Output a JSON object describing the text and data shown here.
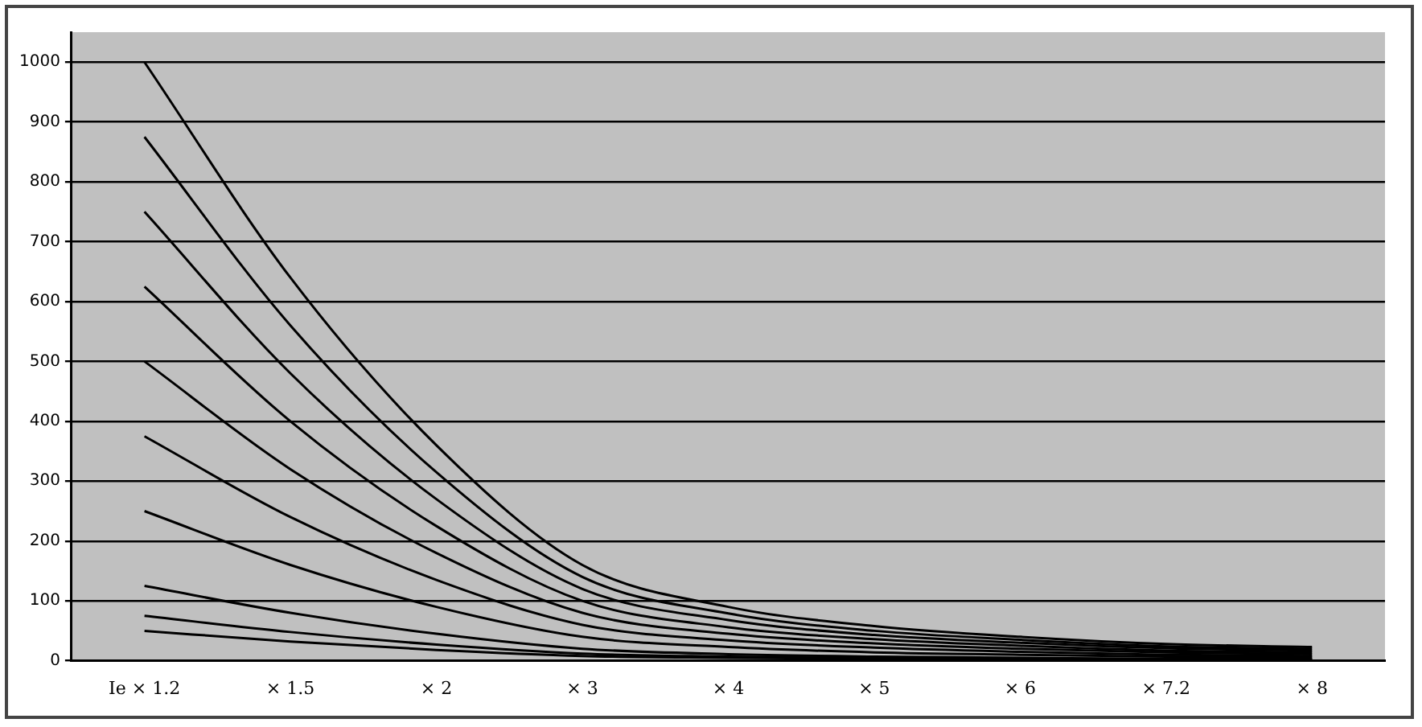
{
  "chart_data": {
    "type": "line",
    "categories": [
      "Ie × 1.2",
      "× 1.5",
      "× 2",
      "× 3",
      "× 4",
      "× 5",
      "× 6",
      "× 7.2",
      "× 8"
    ],
    "series": [
      {
        "color": "#000000",
        "values": [
          1000,
          640,
          360,
          160,
          90,
          58,
          40,
          28,
          23
        ]
      },
      {
        "color": "#000000",
        "values": [
          875,
          560,
          315,
          140,
          79,
          50,
          35,
          24,
          20
        ]
      },
      {
        "color": "#000000",
        "values": [
          750,
          480,
          270,
          120,
          68,
          43,
          30,
          21,
          17
        ]
      },
      {
        "color": "#000000",
        "values": [
          625,
          400,
          225,
          100,
          56,
          36,
          25,
          17,
          14
        ]
      },
      {
        "color": "#000000",
        "values": [
          500,
          320,
          180,
          80,
          45,
          29,
          20,
          14,
          11
        ]
      },
      {
        "color": "#000000",
        "values": [
          375,
          240,
          135,
          60,
          34,
          22,
          15,
          10,
          8
        ]
      },
      {
        "color": "#000000",
        "values": [
          250,
          160,
          90,
          40,
          23,
          14,
          10,
          7,
          6
        ]
      },
      {
        "color": "#000000",
        "values": [
          125,
          80,
          45,
          20,
          11,
          7,
          5,
          3,
          3
        ]
      },
      {
        "color": "#000000",
        "values": [
          75,
          48,
          27,
          12,
          7,
          4,
          3,
          2,
          2
        ]
      },
      {
        "color": "#000000",
        "values": [
          50,
          32,
          18,
          8,
          5,
          3,
          2,
          1,
          1
        ]
      }
    ],
    "ylim": [
      0,
      1050
    ],
    "yticks": [
      0,
      100,
      200,
      300,
      400,
      500,
      600,
      700,
      800,
      900,
      1000
    ],
    "grid": "y",
    "legend": false,
    "marker": "none",
    "line_style": "solid"
  }
}
